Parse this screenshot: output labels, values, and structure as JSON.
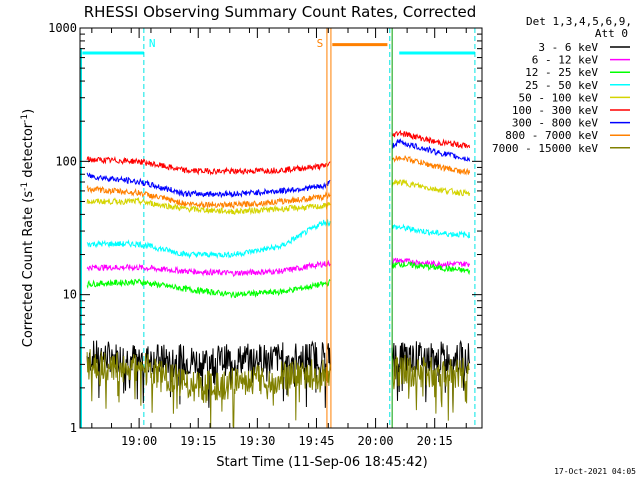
{
  "chart_data": {
    "type": "line",
    "title": "RHESSI Observing Summary Count Rates, Corrected",
    "xlabel": "Start Time (11-Sep-06 18:45:42)",
    "ylabel_prefix": "Corrected Count Rate (s",
    "ylabel_sup": "-1",
    "ylabel_mid": " detector",
    "ylabel_sup2": "-1",
    "ylabel_suffix": ")",
    "y_scale": "log",
    "ylim": [
      1,
      1000
    ],
    "xlim_minutes": [
      18.75,
      20.45
    ],
    "x_ticks": [
      {
        "t": 19.0,
        "label": "19:00"
      },
      {
        "t": 19.25,
        "label": "19:15"
      },
      {
        "t": 19.5,
        "label": "19:30"
      },
      {
        "t": 19.75,
        "label": "19:45"
      },
      {
        "t": 20.0,
        "label": "20:00"
      },
      {
        "t": 20.25,
        "label": "20:15"
      }
    ],
    "y_ticks": [
      {
        "v": 1,
        "label": "1"
      },
      {
        "v": 10,
        "label": "10"
      },
      {
        "v": 100,
        "label": "100"
      },
      {
        "v": 1000,
        "label": "1000"
      }
    ],
    "legend": {
      "placement": "right",
      "header1": "Det 1,3,4,5,6,9,",
      "header2": "Att 0",
      "entries": [
        {
          "label": "3 - 6 keV",
          "color": "#000000"
        },
        {
          "label": "6 - 12 keV",
          "color": "#ff00ff"
        },
        {
          "label": "12 - 25 keV",
          "color": "#00ff00"
        },
        {
          "label": "25 - 50 keV",
          "color": "#00ffff"
        },
        {
          "label": "50 - 100 keV",
          "color": "#d4d400"
        },
        {
          "label": "100 - 300 keV",
          "color": "#ff0000"
        },
        {
          "label": "300 - 800 keV",
          "color": "#0000ff"
        },
        {
          "label": "800 - 7000 keV",
          "color": "#ff8000"
        },
        {
          "label": "7000 - 15000 keV",
          "color": "#808000"
        }
      ]
    },
    "annotations": [
      {
        "label": "N",
        "t": 19.03,
        "color": "#00ffff"
      },
      {
        "label": "S",
        "t": 19.79,
        "color": "#ff8000"
      }
    ],
    "gaps": [
      [
        19.81,
        20.07
      ]
    ],
    "night_bars": [
      {
        "start": 18.76,
        "end": 19.02,
        "value": 650,
        "color": "#00ffff"
      },
      {
        "start": 20.1,
        "end": 20.42,
        "value": 650,
        "color": "#00ffff"
      }
    ],
    "saa_bar": {
      "start": 19.8,
      "end": 20.05,
      "value": 750,
      "color": "#ff8000"
    },
    "dashed_lines": [
      19.02,
      20.06,
      20.42
    ],
    "series": [
      {
        "name": "3 - 6 keV",
        "color": "#000000",
        "x": [
          18.78,
          19.02,
          19.25,
          19.5,
          19.78,
          20.1,
          20.25,
          20.4
        ],
        "values": [
          3.5,
          3.3,
          3.2,
          3.3,
          3.5,
          3.5,
          3.4,
          3.4
        ]
      },
      {
        "name": "6 - 12 keV",
        "color": "#ff00ff",
        "x": [
          18.78,
          19.0,
          19.2,
          19.4,
          19.6,
          19.78,
          20.1,
          20.25,
          20.4
        ],
        "values": [
          16,
          16,
          15,
          14.5,
          15,
          17,
          18,
          17,
          17
        ]
      },
      {
        "name": "12 - 25 keV",
        "color": "#00ff00",
        "x": [
          18.78,
          19.0,
          19.2,
          19.4,
          19.6,
          19.78,
          20.1,
          20.25,
          20.4
        ],
        "values": [
          12,
          12.5,
          11,
          10,
          10.5,
          12,
          17,
          16,
          15
        ]
      },
      {
        "name": "25 - 50 keV",
        "color": "#00ffff",
        "x": [
          18.78,
          19.0,
          19.2,
          19.4,
          19.6,
          19.78,
          20.1,
          20.25,
          20.4
        ],
        "values": [
          24,
          24,
          20,
          20,
          23,
          35,
          32,
          29,
          28
        ]
      },
      {
        "name": "50 - 100 keV",
        "color": "#d4d400",
        "x": [
          18.78,
          19.0,
          19.2,
          19.4,
          19.6,
          19.78,
          20.1,
          20.25,
          20.4
        ],
        "values": [
          50,
          50,
          44,
          42,
          44,
          46,
          70,
          62,
          57
        ]
      },
      {
        "name": "100 - 300 keV",
        "color": "#ff0000",
        "x": [
          18.78,
          19.0,
          19.2,
          19.4,
          19.6,
          19.78,
          20.1,
          20.25,
          20.4
        ],
        "values": [
          103,
          100,
          85,
          84,
          86,
          92,
          165,
          140,
          130
        ]
      },
      {
        "name": "300 - 800 keV",
        "color": "#0000ff",
        "x": [
          18.78,
          19.0,
          19.2,
          19.4,
          19.6,
          19.78,
          20.1,
          20.25,
          20.4
        ],
        "values": [
          78,
          70,
          57,
          57,
          60,
          65,
          140,
          118,
          103
        ]
      },
      {
        "name": "800 - 7000 keV",
        "color": "#ff8000",
        "x": [
          18.78,
          19.0,
          19.2,
          19.4,
          19.6,
          19.78,
          20.1,
          20.25,
          20.4
        ],
        "values": [
          62,
          58,
          48,
          47,
          50,
          54,
          108,
          92,
          82
        ]
      },
      {
        "name": "7000 - 15000 keV",
        "color": "#808000",
        "x": [
          18.78,
          19.02,
          19.25,
          19.5,
          19.78,
          20.1,
          20.25,
          20.4
        ],
        "values": [
          3.0,
          2.8,
          2.0,
          2.3,
          2.6,
          2.7,
          2.6,
          2.6
        ]
      }
    ]
  },
  "footer": {
    "timestamp": "17-Oct-2021 04:05"
  }
}
